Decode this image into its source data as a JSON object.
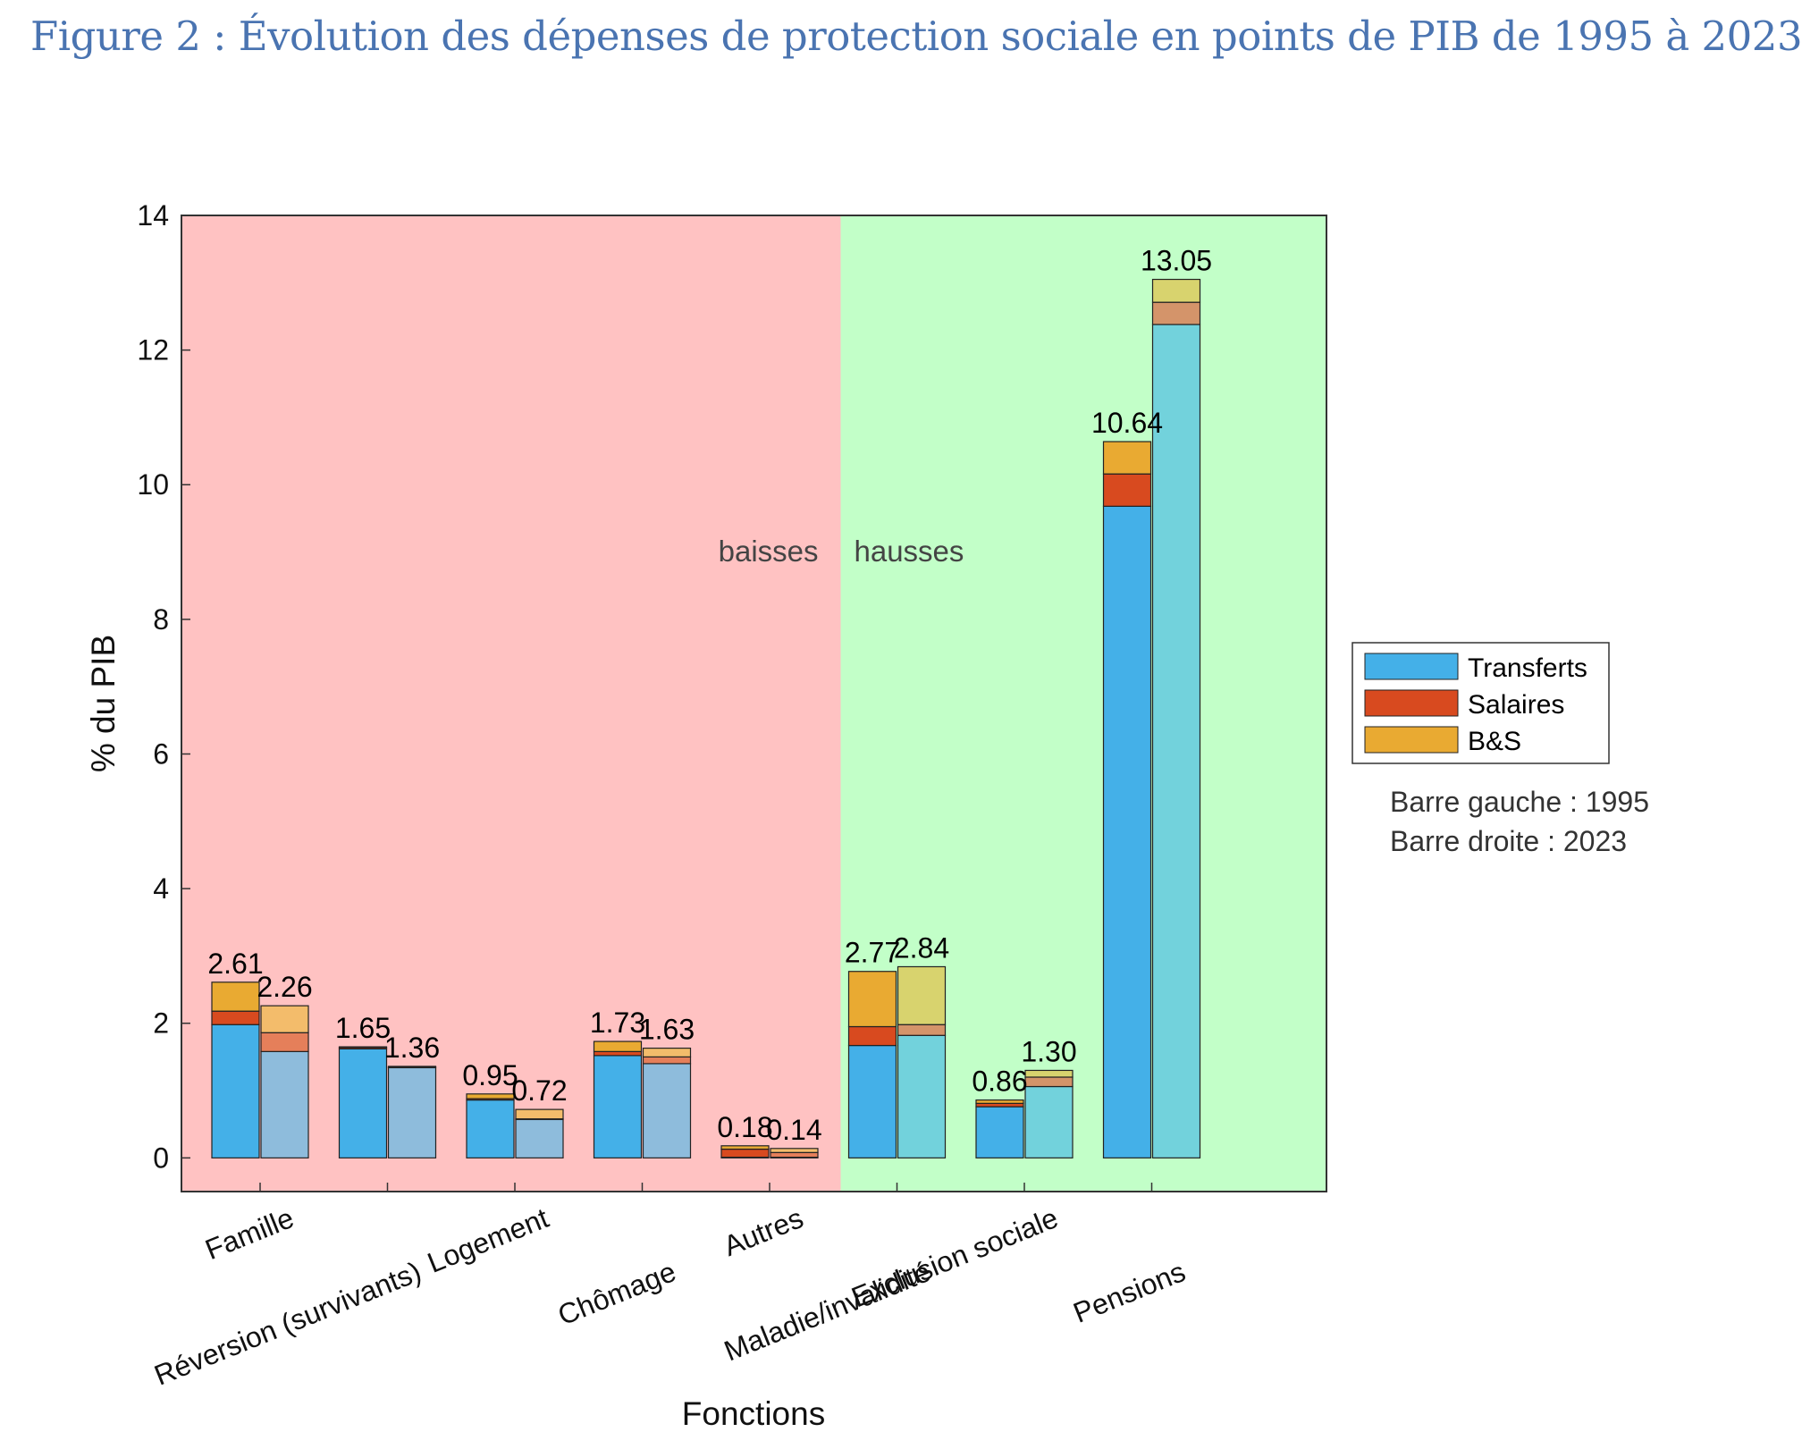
{
  "title": "Figure 2 : Évolution des dépenses de protection sociale en points de PIB de 1995 à 2023",
  "chart_data": {
    "type": "bar",
    "stacked": true,
    "grouped": true,
    "ylabel": "% du PIB",
    "xlabel": "Fonctions",
    "ylim": [
      -0.5,
      14
    ],
    "yticks": [
      0,
      2,
      4,
      6,
      8,
      10,
      12,
      14
    ],
    "grid": false,
    "categories": [
      "Famille",
      "Réversion (survivants)",
      "Logement",
      "Chômage",
      "Autres",
      "Maladie/invalidité",
      "Exclusion sociale",
      "Pensions"
    ],
    "zones": [
      {
        "label": "baisses",
        "from_category": 0,
        "to_category": 4,
        "color": "#ffc2c2"
      },
      {
        "label": "hausses",
        "from_category": 5,
        "to_category": 7,
        "color": "#c2ffc8"
      }
    ],
    "components": [
      "Transferts",
      "Salaires",
      "B&S"
    ],
    "bars": [
      {
        "category": "Famille",
        "year": "1995",
        "values": [
          1.98,
          0.2,
          0.43
        ],
        "total_label": "2.61"
      },
      {
        "category": "Famille",
        "year": "2023",
        "values": [
          1.58,
          0.28,
          0.4
        ],
        "total_label": "2.26"
      },
      {
        "category": "Réversion (survivants)",
        "year": "1995",
        "values": [
          1.62,
          0.02,
          0.01
        ],
        "total_label": "1.65"
      },
      {
        "category": "Réversion (survivants)",
        "year": "2023",
        "values": [
          1.34,
          0.01,
          0.01
        ],
        "total_label": "1.36"
      },
      {
        "category": "Logement",
        "year": "1995",
        "values": [
          0.86,
          0.02,
          0.07
        ],
        "total_label": "0.95"
      },
      {
        "category": "Logement",
        "year": "2023",
        "values": [
          0.57,
          0.01,
          0.14
        ],
        "total_label": "0.72"
      },
      {
        "category": "Chômage",
        "year": "1995",
        "values": [
          1.52,
          0.06,
          0.15
        ],
        "total_label": "1.73"
      },
      {
        "category": "Chômage",
        "year": "2023",
        "values": [
          1.4,
          0.1,
          0.13
        ],
        "total_label": "1.63"
      },
      {
        "category": "Autres",
        "year": "1995",
        "values": [
          0.01,
          0.12,
          0.05
        ],
        "total_label": "0.18"
      },
      {
        "category": "Autres",
        "year": "2023",
        "values": [
          0.01,
          0.07,
          0.06
        ],
        "total_label": "0.14"
      },
      {
        "category": "Maladie/invalidité",
        "year": "1995",
        "values": [
          1.67,
          0.28,
          0.82
        ],
        "total_label": "2.77"
      },
      {
        "category": "Maladie/invalidité",
        "year": "2023",
        "values": [
          1.82,
          0.16,
          0.86
        ],
        "total_label": "2.84"
      },
      {
        "category": "Exclusion sociale",
        "year": "1995",
        "values": [
          0.76,
          0.05,
          0.05
        ],
        "total_label": "0.86"
      },
      {
        "category": "Exclusion sociale",
        "year": "2023",
        "values": [
          1.06,
          0.14,
          0.1
        ],
        "total_label": "1.30"
      },
      {
        "category": "Pensions",
        "year": "1995",
        "values": [
          9.68,
          0.48,
          0.48
        ],
        "total_label": "10.64"
      },
      {
        "category": "Pensions",
        "year": "2023",
        "values": [
          12.38,
          0.33,
          0.34
        ],
        "total_label": "13.05"
      }
    ],
    "colors": {
      "baisses_1995": [
        "#44b0e8",
        "#d84a1f",
        "#e9aa32"
      ],
      "baisses_2023": [
        "#8ebcdc",
        "#e57f5a",
        "#f3bc6b"
      ],
      "hausses_1995": [
        "#44b0e8",
        "#d84a1f",
        "#e9aa32"
      ],
      "hausses_2023": [
        "#72d2dc",
        "#d4946a",
        "#d8d36e"
      ]
    },
    "legend": {
      "position": "right",
      "items": [
        {
          "label": "Transferts",
          "color": "#44b0e8"
        },
        {
          "label": "Salaires",
          "color": "#d84a1f"
        },
        {
          "label": "B&S",
          "color": "#e9aa32"
        }
      ]
    },
    "notes": [
      "Barre gauche : 1995",
      "Barre droite : 2023"
    ]
  }
}
